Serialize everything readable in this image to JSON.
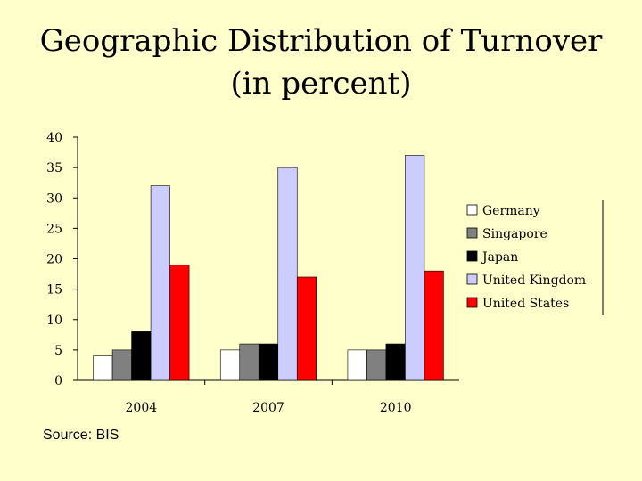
{
  "chart_data": {
    "type": "bar",
    "title": "Geographic Distribution of Turnover",
    "subtitle": "(in percent)",
    "categories": [
      "2004",
      "2007",
      "2010"
    ],
    "series": [
      {
        "name": "Germany",
        "color": "#ffffff",
        "values": [
          4,
          5,
          5
        ]
      },
      {
        "name": "Singapore",
        "color": "#808080",
        "values": [
          5,
          6,
          5
        ]
      },
      {
        "name": "Japan",
        "color": "#000000",
        "values": [
          8,
          6,
          6
        ]
      },
      {
        "name": "United Kingdom",
        "color": "#ccccff",
        "values": [
          32,
          35,
          37
        ]
      },
      {
        "name": "United States",
        "color": "#ff0000",
        "values": [
          19,
          17,
          18
        ]
      }
    ],
    "ylim": [
      0,
      40
    ],
    "yticks": [
      0,
      5,
      10,
      15,
      20,
      25,
      30,
      35,
      40
    ],
    "grid": false,
    "legend": "right"
  },
  "source": "Source: BIS"
}
